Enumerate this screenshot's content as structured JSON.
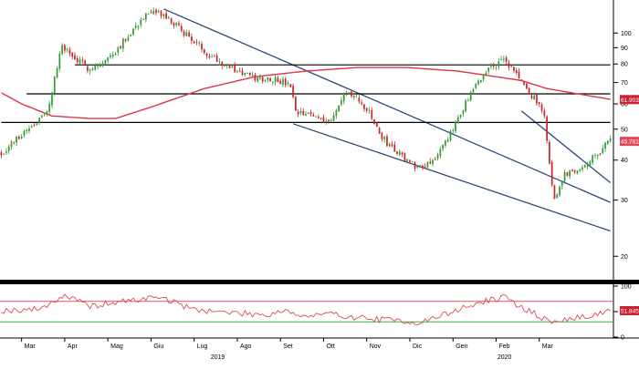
{
  "chart_data": {
    "type": "candlestick",
    "title": "",
    "xlabel": "",
    "ylabel": "",
    "log_scale": true,
    "ylim": [
      17,
      122
    ],
    "grid": false,
    "legend": "none",
    "colors": {
      "up": "#2f9e33",
      "down": "#c8262c",
      "moving_average": "#e0344a",
      "trendlines": "#2e4a7a",
      "horizontal_levels": "#000000",
      "rsi": "#e04a58",
      "rsi_upper": "#e05060",
      "rsi_lower": "#40b040",
      "price_tag": "#e24a5a",
      "ma_tag": "#cc2233"
    },
    "y_ticks": [
      20,
      30,
      40,
      50,
      60,
      70,
      80,
      90,
      100
    ],
    "month_labels": [
      {
        "label": "Mar",
        "index": 8
      },
      {
        "label": "Apr",
        "index": 25
      },
      {
        "label": "Mag",
        "index": 42
      },
      {
        "label": "Giu",
        "index": 59
      },
      {
        "label": "Lug",
        "index": 76
      },
      {
        "label": "Ago",
        "index": 93
      },
      {
        "label": "Set",
        "index": 110
      },
      {
        "label": "Ott",
        "index": 127
      },
      {
        "label": "Nov",
        "index": 144
      },
      {
        "label": "Dic",
        "index": 161
      },
      {
        "label": "Gen",
        "index": 178
      },
      {
        "label": "Feb",
        "index": 195
      },
      {
        "label": "Mar",
        "index": 212
      }
    ],
    "year_labels": [
      {
        "label": "2019",
        "index": 85
      },
      {
        "label": "2020",
        "index": 198
      }
    ],
    "price_key_points": [
      [
        0,
        42
      ],
      [
        10,
        50
      ],
      [
        18,
        56
      ],
      [
        24,
        92
      ],
      [
        28,
        84
      ],
      [
        34,
        78
      ],
      [
        40,
        80
      ],
      [
        46,
        90
      ],
      [
        52,
        103
      ],
      [
        56,
        112
      ],
      [
        62,
        116
      ],
      [
        70,
        104
      ],
      [
        80,
        88
      ],
      [
        90,
        78
      ],
      [
        100,
        72
      ],
      [
        108,
        72
      ],
      [
        114,
        68
      ],
      [
        116,
        56
      ],
      [
        124,
        55
      ],
      [
        130,
        53
      ],
      [
        136,
        66
      ],
      [
        144,
        58
      ],
      [
        150,
        47
      ],
      [
        158,
        41
      ],
      [
        164,
        38
      ],
      [
        170,
        40
      ],
      [
        176,
        46
      ],
      [
        180,
        55
      ],
      [
        186,
        66
      ],
      [
        192,
        78
      ],
      [
        198,
        82
      ],
      [
        204,
        73
      ],
      [
        208,
        64
      ],
      [
        212,
        61
      ],
      [
        214,
        54
      ],
      [
        216,
        39
      ],
      [
        218,
        30
      ],
      [
        222,
        36
      ],
      [
        228,
        38
      ],
      [
        234,
        41
      ],
      [
        238,
        45
      ],
      [
        240,
        46
      ]
    ],
    "ma_key_points": [
      [
        0,
        65
      ],
      [
        8,
        60
      ],
      [
        20,
        55
      ],
      [
        35,
        54
      ],
      [
        45,
        54
      ],
      [
        60,
        59
      ],
      [
        80,
        67
      ],
      [
        100,
        73
      ],
      [
        120,
        76
      ],
      [
        140,
        78
      ],
      [
        160,
        78
      ],
      [
        180,
        76
      ],
      [
        195,
        73
      ],
      [
        205,
        71
      ],
      [
        215,
        67
      ],
      [
        240,
        62
      ]
    ],
    "horizontal_levels": [
      {
        "value": 79.5,
        "from_index": 29,
        "to_index": 240
      },
      {
        "value": 64.5,
        "from_index": 10,
        "to_index": 240
      },
      {
        "value": 52.5,
        "from_index": 0,
        "to_index": 240
      }
    ],
    "trendlines": [
      {
        "from": [
          64,
          119
        ],
        "to": [
          240,
          29.5
        ]
      },
      {
        "from": [
          115,
          52
        ],
        "to": [
          240,
          24
        ]
      },
      {
        "from": [
          205,
          57
        ],
        "to": [
          240,
          34
        ]
      }
    ],
    "price_tags": [
      {
        "label": "61.9039",
        "value": 61.9,
        "style": "ma"
      },
      {
        "label": "45.7816",
        "value": 45.8,
        "style": "price"
      }
    ],
    "rsi": {
      "ylim": [
        0,
        100
      ],
      "ticks": [
        0,
        50,
        100
      ],
      "upper_level": 70,
      "lower_level": 30,
      "value_label": "51.8459",
      "current": 51.8,
      "key_points": [
        [
          0,
          52
        ],
        [
          15,
          55
        ],
        [
          25,
          82
        ],
        [
          35,
          60
        ],
        [
          45,
          68
        ],
        [
          55,
          74
        ],
        [
          62,
          80
        ],
        [
          75,
          55
        ],
        [
          90,
          48
        ],
        [
          105,
          44
        ],
        [
          112,
          54
        ],
        [
          118,
          40
        ],
        [
          130,
          45
        ],
        [
          145,
          36
        ],
        [
          158,
          32
        ],
        [
          165,
          28
        ],
        [
          175,
          45
        ],
        [
          185,
          62
        ],
        [
          192,
          72
        ],
        [
          198,
          78
        ],
        [
          205,
          58
        ],
        [
          212,
          42
        ],
        [
          216,
          28
        ],
        [
          222,
          34
        ],
        [
          230,
          40
        ],
        [
          240,
          52
        ]
      ]
    }
  }
}
